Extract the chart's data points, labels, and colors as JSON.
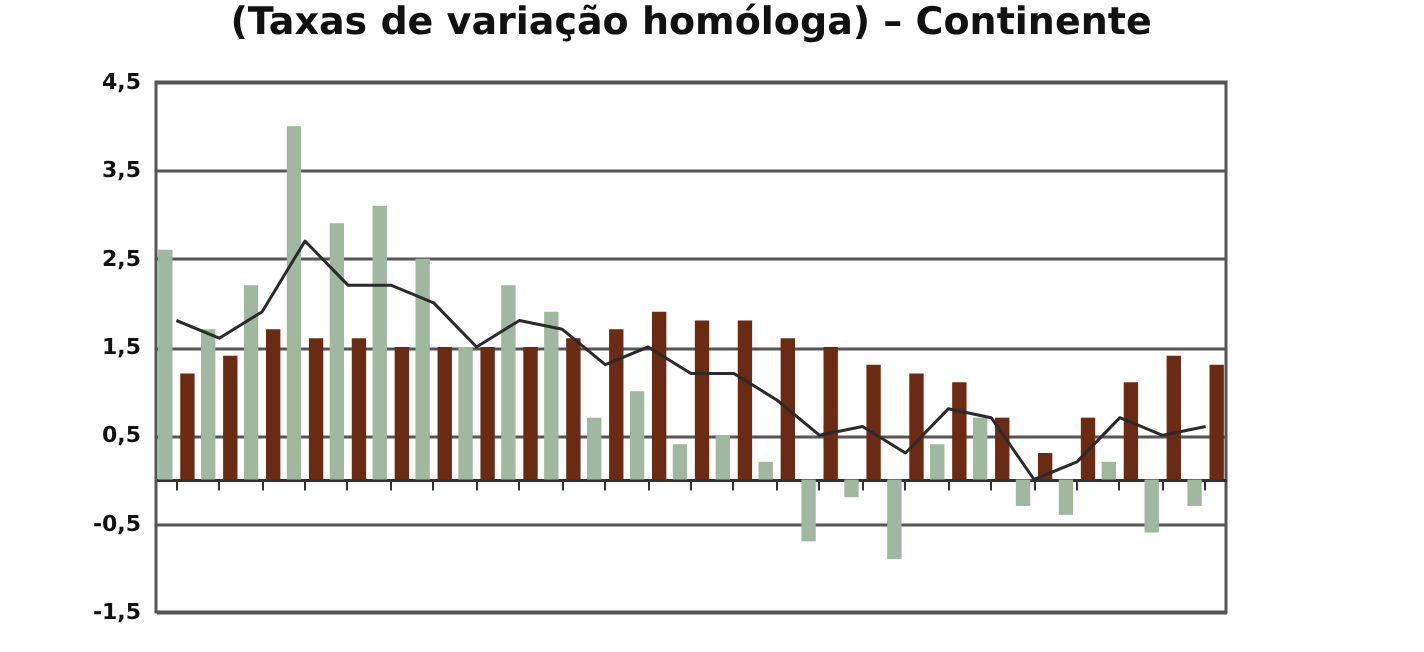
{
  "chart_data": {
    "type": "bar",
    "title": "(Taxas de variação homóloga) – Continente",
    "categories": [
      null,
      null,
      null,
      null,
      null,
      null,
      null,
      null,
      null,
      null,
      null,
      null,
      null,
      null,
      null,
      null,
      null,
      null,
      null,
      null,
      null,
      null,
      null,
      null,
      null
    ],
    "series": [
      {
        "color": "#9fb89f",
        "values": [
          2.6,
          1.7,
          2.2,
          4.0,
          2.9,
          3.1,
          2.5,
          1.5,
          2.2,
          1.9,
          0.7,
          1.0,
          0.4,
          0.5,
          0.2,
          -0.7,
          -0.2,
          -0.9,
          0.4,
          0.7,
          -0.3,
          -0.4,
          0.2,
          -0.6,
          -0.3
        ]
      },
      {
        "color": "#6b2a12",
        "values": [
          1.2,
          1.4,
          1.7,
          1.6,
          1.6,
          1.5,
          1.5,
          1.5,
          1.5,
          1.6,
          1.7,
          1.9,
          1.8,
          1.8,
          1.6,
          1.5,
          1.3,
          1.2,
          1.1,
          0.7,
          0.3,
          0.7,
          1.1,
          1.4,
          1.3
        ]
      },
      {
        "type": "line",
        "color": "#2b2b2b",
        "values": [
          1.8,
          1.6,
          1.9,
          2.7,
          2.2,
          2.2,
          2.0,
          1.5,
          1.8,
          1.7,
          1.3,
          1.5,
          1.2,
          1.2,
          0.9,
          0.5,
          0.6,
          0.3,
          0.8,
          0.7,
          0.0,
          0.2,
          0.7,
          0.5,
          0.6
        ]
      }
    ],
    "ylim": [
      -1.5,
      4.5
    ],
    "yticks": [
      {
        "value": -1.5,
        "label": "-1,5"
      },
      {
        "value": -0.5,
        "label": "-0,5"
      },
      {
        "value": 0.5,
        "label": "0,5"
      },
      {
        "value": 1.5,
        "label": "1,5"
      },
      {
        "value": 2.5,
        "label": "2,5"
      },
      {
        "value": 3.5,
        "label": "3,5"
      },
      {
        "value": 4.5,
        "label": "4,5"
      }
    ],
    "grid": "y"
  }
}
